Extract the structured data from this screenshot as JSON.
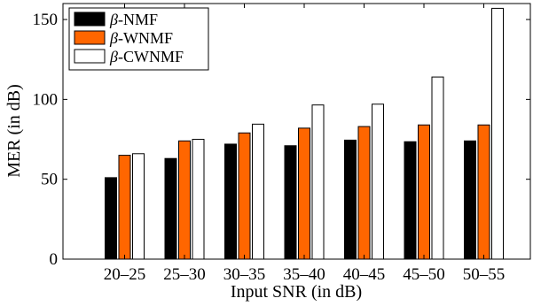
{
  "chart_data": {
    "type": "bar",
    "title": "",
    "xlabel": "Input SNR (in dB)",
    "ylabel": "MER (in dB)",
    "ylim": [
      0,
      160
    ],
    "yticks": [
      0,
      50,
      100,
      150
    ],
    "grid": false,
    "legend_position": "top-left",
    "categories": [
      "20–25",
      "25–30",
      "30–35",
      "35–40",
      "40–45",
      "45–50",
      "50–55"
    ],
    "series": [
      {
        "name": "β-NMF",
        "beta": "β",
        "suffix": "-NMF",
        "color": "#000000",
        "values": [
          51,
          63,
          72,
          71,
          74.5,
          73.5,
          74
        ]
      },
      {
        "name": "β-WNMF",
        "beta": "β",
        "suffix": "-WNMF",
        "color": "#ff6600",
        "values": [
          65,
          74,
          79,
          82,
          83,
          84,
          84
        ]
      },
      {
        "name": "β-CWNMF",
        "beta": "β",
        "suffix": "-CWNMF",
        "color": "#ffffff",
        "values": [
          66,
          75,
          84.5,
          96.5,
          97,
          114,
          157
        ]
      }
    ]
  }
}
